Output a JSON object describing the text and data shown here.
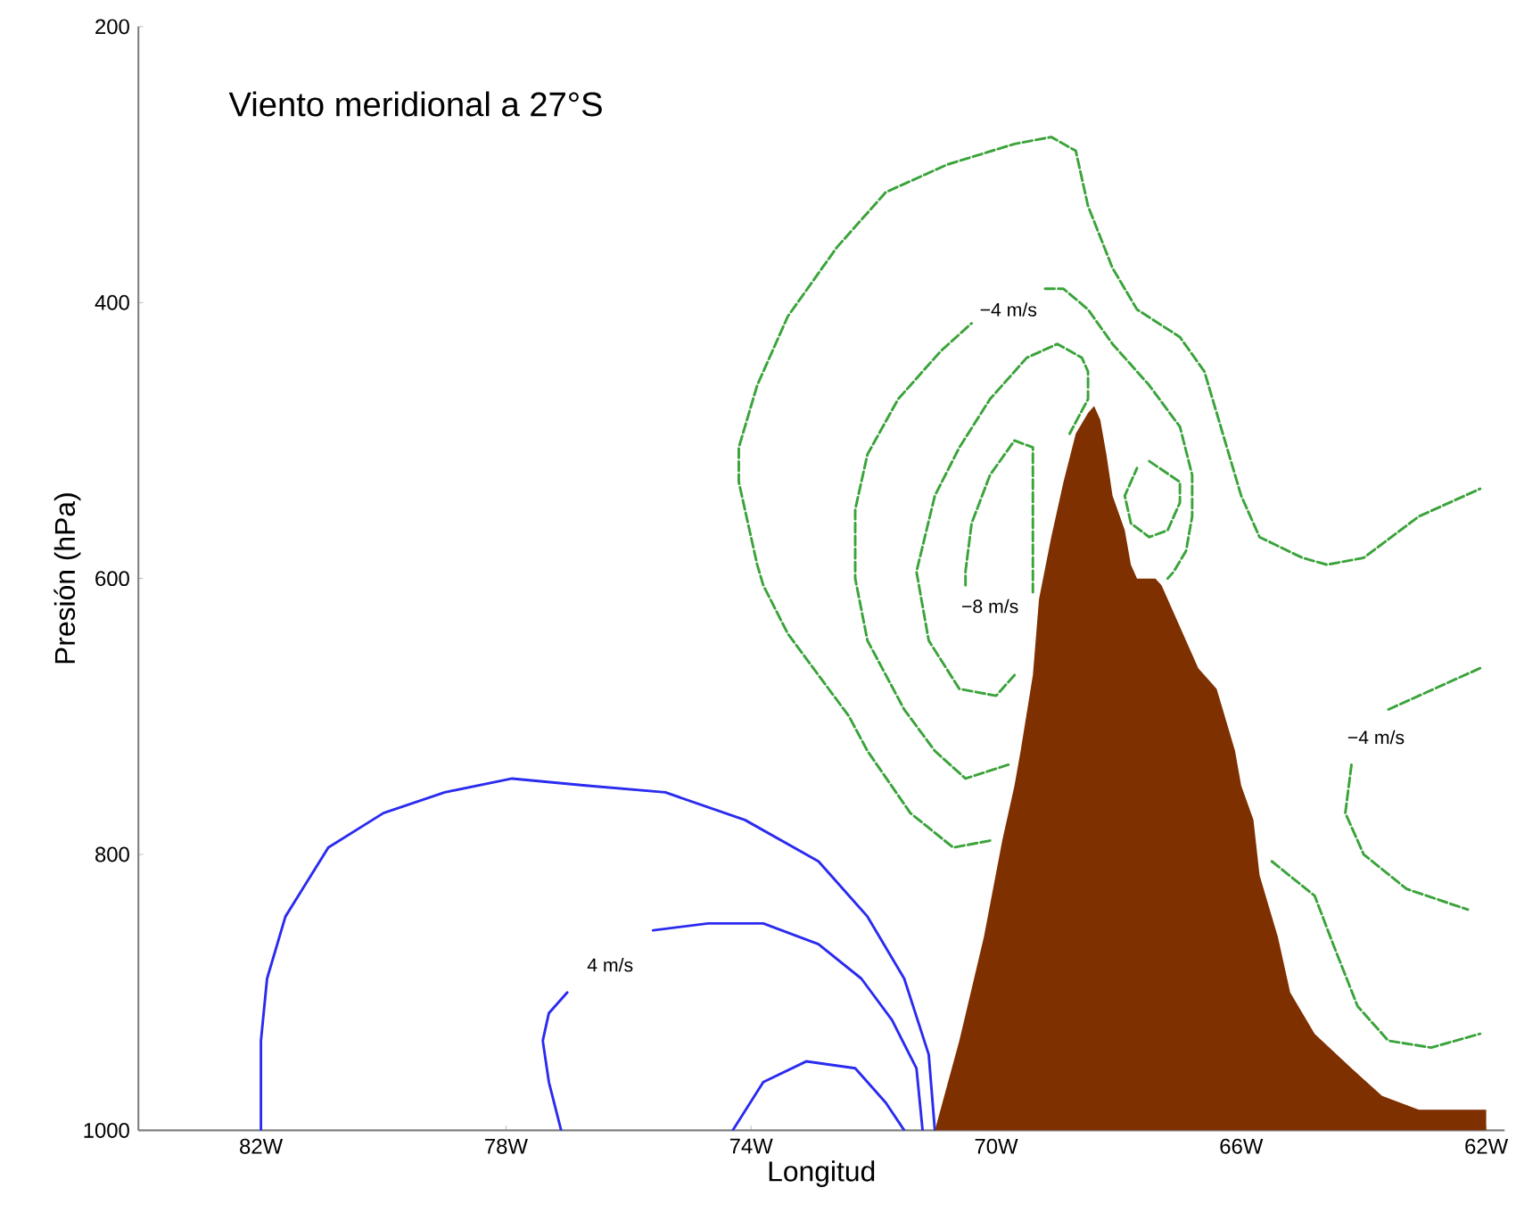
{
  "chart_data": {
    "type": "line",
    "title": "Viento meridional a 27°S",
    "xlabel": "Longitud",
    "ylabel": "Presión (hPa)",
    "xlim": [
      -84.0,
      -61.7
    ],
    "ylim": [
      1000,
      200
    ],
    "xticks": [
      {
        "value": -82,
        "label": "82W"
      },
      {
        "value": -78,
        "label": "78W"
      },
      {
        "value": -74,
        "label": "74W"
      },
      {
        "value": -70,
        "label": "70W"
      },
      {
        "value": -66,
        "label": "66W"
      },
      {
        "value": -62,
        "label": "62W"
      }
    ],
    "yticks": [
      200,
      400,
      600,
      800,
      1000
    ],
    "annotations": [
      {
        "text": "4 m/s",
        "x": -76.3,
        "y": 880
      },
      {
        "text": "−4 m/s",
        "x": -69.8,
        "y": 405
      },
      {
        "text": "−8 m/s",
        "x": -70.1,
        "y": 620
      },
      {
        "text": "−4 m/s",
        "x": -63.8,
        "y": 715
      }
    ],
    "series": [
      {
        "type": "line",
        "line_style": "solid",
        "color": "#2b2bf0",
        "x": [
          -82.0,
          -82.0,
          -81.9,
          -81.6,
          -80.9,
          -80.0,
          -79.0,
          -77.9,
          -76.7,
          -75.4,
          -74.1,
          -72.9,
          -72.1,
          -71.5,
          -71.1,
          -71.0
        ],
        "values": [
          1000,
          935,
          890,
          845,
          795,
          770,
          755,
          745,
          750,
          755,
          775,
          805,
          845,
          890,
          945,
          1000
        ]
      },
      {
        "type": "line",
        "line_style": "solid",
        "color": "#2b2bf0",
        "x": [
          -77.1,
          -77.3,
          -77.4,
          -77.3,
          -77.0
        ],
        "values": [
          1000,
          965,
          935,
          915,
          900
        ]
      },
      {
        "type": "line",
        "line_style": "solid",
        "color": "#2b2bf0",
        "x": [
          -75.6,
          -74.7,
          -73.8,
          -72.9,
          -72.2,
          -71.7,
          -71.3,
          -71.2
        ],
        "values": [
          855,
          850,
          850,
          865,
          890,
          920,
          955,
          1000
        ]
      },
      {
        "type": "line",
        "line_style": "solid",
        "color": "#2b2bf0",
        "x": [
          -74.3,
          -73.8,
          -73.1,
          -72.3,
          -71.8,
          -71.5
        ],
        "values": [
          1000,
          965,
          950,
          955,
          980,
          1000
        ]
      },
      {
        "type": "line",
        "line_style": "dashed",
        "color": "#3aa33a",
        "x": [
          -70.1,
          -70.7,
          -71.4,
          -72.1,
          -72.4,
          -72.9,
          -73.4,
          -73.8,
          -73.9,
          -74.2,
          -74.2,
          -73.9,
          -73.4,
          -72.6,
          -71.8,
          -70.8,
          -69.7,
          -69.1,
          -68.7,
          -68.5,
          -68.1,
          -67.7,
          -67.0,
          -66.6,
          -66.3,
          -66.0,
          -65.7,
          -65.0,
          -64.6,
          -64.0,
          -63.1,
          -62.1
        ],
        "values": [
          790,
          795,
          770,
          725,
          700,
          670,
          640,
          605,
          590,
          530,
          505,
          460,
          410,
          360,
          320,
          300,
          285,
          280,
          290,
          330,
          375,
          405,
          425,
          450,
          495,
          540,
          570,
          585,
          590,
          585,
          555,
          535
        ]
      },
      {
        "type": "line",
        "line_style": "dashed",
        "color": "#3aa33a",
        "x": [
          -69.8,
          -70.5,
          -71.0,
          -71.5,
          -72.1,
          -72.3,
          -72.3,
          -72.1,
          -71.6,
          -70.9,
          -70.4
        ],
        "values": [
          735,
          745,
          725,
          695,
          645,
          600,
          550,
          510,
          470,
          435,
          415
        ]
      },
      {
        "type": "line",
        "line_style": "dashed",
        "color": "#3aa33a",
        "x": [
          -69.2,
          -68.9,
          -68.5,
          -68.1,
          -67.5,
          -67.0,
          -66.8,
          -66.8,
          -66.9,
          -67.1,
          -67.2
        ],
        "values": [
          390,
          390,
          405,
          430,
          460,
          490,
          525,
          555,
          580,
          595,
          600
        ]
      },
      {
        "type": "line",
        "line_style": "dashed",
        "color": "#3aa33a",
        "x": [
          -69.7,
          -70.0,
          -70.6,
          -71.1,
          -71.3,
          -71.0,
          -70.6,
          -70.1,
          -69.5,
          -69.0,
          -68.6,
          -68.5,
          -68.5,
          -68.8
        ],
        "values": [
          670,
          685,
          680,
          645,
          595,
          540,
          505,
          470,
          440,
          430,
          440,
          450,
          470,
          495
        ]
      },
      {
        "type": "line",
        "line_style": "dashed",
        "color": "#3aa33a",
        "x": [
          -70.5,
          -70.5,
          -70.4,
          -70.1,
          -69.7,
          -69.4,
          -69.4,
          -69.4,
          -69.4
        ],
        "values": [
          605,
          595,
          560,
          525,
          500,
          505,
          550,
          595,
          610
        ]
      },
      {
        "type": "line",
        "line_style": "dashed",
        "color": "#3aa33a",
        "x": [
          -67.5,
          -67.0,
          -67.0,
          -67.2,
          -67.5,
          -67.8,
          -67.9,
          -67.7
        ],
        "values": [
          515,
          530,
          545,
          565,
          570,
          560,
          540,
          520
        ]
      },
      {
        "type": "line",
        "line_style": "dashed",
        "color": "#3aa33a",
        "x": [
          -62.1,
          -63.1,
          -63.6
        ],
        "values": [
          665,
          685,
          695
        ]
      },
      {
        "type": "line",
        "line_style": "dashed",
        "color": "#3aa33a",
        "x": [
          -64.2,
          -64.3,
          -64.0,
          -63.3,
          -62.3
        ],
        "values": [
          735,
          770,
          800,
          825,
          840
        ]
      },
      {
        "type": "line",
        "line_style": "dashed",
        "color": "#3aa33a",
        "x": [
          -65.5,
          -64.8,
          -64.5,
          -64.1,
          -63.6,
          -62.9,
          -62.1
        ],
        "values": [
          805,
          830,
          865,
          910,
          935,
          940,
          930
        ]
      },
      {
        "type": "area",
        "color": "#7f3000",
        "x": [
          -71.0,
          -70.6,
          -70.2,
          -69.9,
          -69.7,
          -69.6,
          -69.4,
          -69.3,
          -69.1,
          -68.9,
          -68.7,
          -68.5,
          -68.4,
          -68.3,
          -68.2,
          -68.1,
          -67.9,
          -67.8,
          -67.7,
          -67.4,
          -67.3,
          -67.1,
          -66.9,
          -66.7,
          -66.4,
          -66.3,
          -66.1,
          -66.0,
          -65.8,
          -65.7,
          -65.4,
          -65.2,
          -64.8,
          -64.2,
          -63.7,
          -63.1,
          -62.0,
          -62.0
        ],
        "values": [
          1000,
          935,
          860,
          790,
          750,
          725,
          670,
          615,
          570,
          530,
          495,
          480,
          475,
          485,
          510,
          540,
          565,
          590,
          600,
          600,
          605,
          625,
          645,
          665,
          680,
          695,
          725,
          750,
          775,
          815,
          860,
          900,
          930,
          955,
          975,
          985,
          985,
          1000
        ]
      }
    ]
  }
}
